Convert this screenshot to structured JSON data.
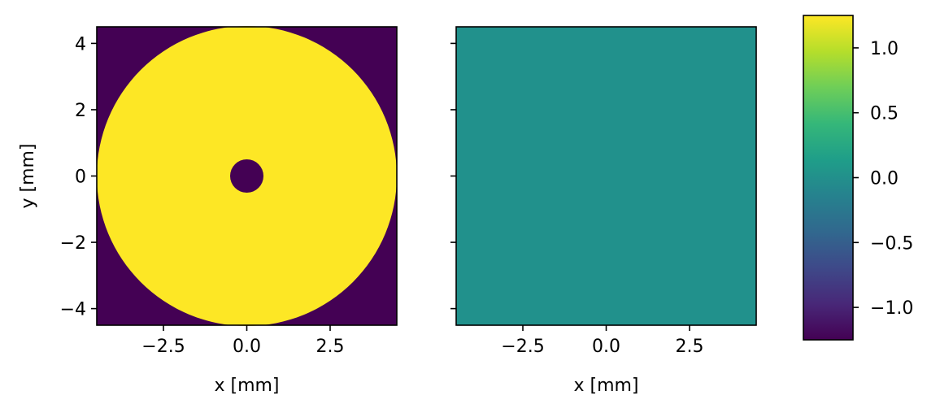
{
  "chart_data": [
    {
      "type": "heatmap",
      "panel": "left",
      "xlabel": "x [mm]",
      "ylabel": "y [mm]",
      "xlim": [
        -4.5,
        4.5
      ],
      "ylim": [
        -4.5,
        4.5
      ],
      "xticks": [
        -2.5,
        0.0,
        2.5
      ],
      "xtick_labels": [
        "−2.5",
        "0.0",
        "2.5"
      ],
      "yticks": [
        -4,
        -2,
        0,
        2,
        4
      ],
      "ytick_labels": [
        "−4",
        "−2",
        "0",
        "2",
        "4"
      ],
      "background_value": -1.25,
      "annulus": {
        "outer_radius": 4.5,
        "inner_radius": 0.5,
        "value": 1.25
      }
    },
    {
      "type": "heatmap",
      "panel": "right",
      "xlabel": "x [mm]",
      "ylabel": "",
      "xlim": [
        -4.5,
        4.5
      ],
      "ylim": [
        -4.5,
        4.5
      ],
      "xticks": [
        -2.5,
        0.0,
        2.5
      ],
      "xtick_labels": [
        "−2.5",
        "0.0",
        "2.5"
      ],
      "yticks": [
        -4,
        -2,
        0,
        2,
        4
      ],
      "ytick_labels": [],
      "uniform_value": 0.0
    }
  ],
  "colorbar": {
    "colormap": "viridis",
    "range": [
      -1.25,
      1.25
    ],
    "ticks": [
      1.0,
      0.5,
      0.0,
      -0.5,
      -1.0
    ],
    "tick_labels": [
      "1.0",
      "0.5",
      "0.0",
      "−0.5",
      "−1.0"
    ],
    "colors": [
      "#440154",
      "#482878",
      "#3e4989",
      "#31688e",
      "#26828e",
      "#1f9e89",
      "#35b779",
      "#6ece58",
      "#b5de2b",
      "#fde725"
    ]
  },
  "colors": {
    "low": "#440154",
    "high": "#fde725",
    "mid": "#21918c"
  }
}
